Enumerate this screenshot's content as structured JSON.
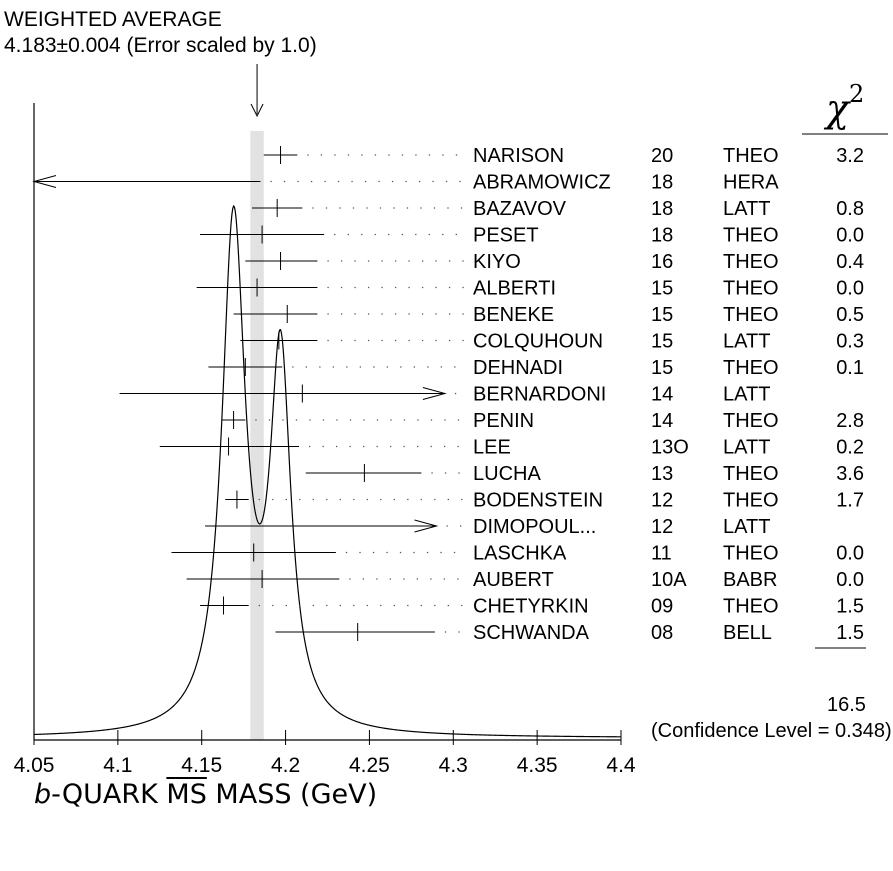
{
  "header": {
    "title": "WEIGHTED AVERAGE",
    "average_line": "4.183±0.004 (Error scaled by 1.0)"
  },
  "chi_label": "χ",
  "chi_power": "2",
  "chi2_total": "16.5",
  "confidence_text": "(Confidence Level = 0.348)",
  "x_title": {
    "prefix": "b",
    "middle": "-QUARK ",
    "ms": "MS",
    "suffix": " MASS (GeV)"
  },
  "chart_data": {
    "type": "ideogram",
    "title": "WEIGHTED AVERAGE",
    "weighted_average": 4.183,
    "weighted_error": 0.004,
    "band": [
      4.179,
      4.187
    ],
    "xlim": [
      4.05,
      4.4
    ],
    "xticks": [
      "4.05",
      "4.1",
      "4.15",
      "4.2",
      "4.25",
      "4.3",
      "4.35",
      "4.4"
    ],
    "xlabel": "b-QUARK MS MASS (GeV)",
    "curve_peaks": [
      {
        "x": 4.169,
        "height": 1.0
      },
      {
        "x": 4.197,
        "height": 0.72
      },
      {
        "x": 4.183,
        "dip": 0.35
      }
    ],
    "measurements": [
      {
        "name": "NARISON",
        "year": "20",
        "tech": "THEO",
        "chi2": "3.2",
        "value": 4.197,
        "lo": 4.187,
        "hi": 4.207
      },
      {
        "name": "ABRAMOWICZ",
        "year": "18",
        "tech": "HERA",
        "chi2": "",
        "value": null,
        "lo": 4.05,
        "hi": 4.185,
        "arrow": "left"
      },
      {
        "name": "BAZAVOV",
        "year": "18",
        "tech": "LATT",
        "chi2": "0.8",
        "value": 4.195,
        "lo": 4.18,
        "hi": 4.21
      },
      {
        "name": "PESET",
        "year": "18",
        "tech": "THEO",
        "chi2": "0.0",
        "value": 4.186,
        "lo": 4.149,
        "hi": 4.223
      },
      {
        "name": "KIYO",
        "year": "16",
        "tech": "THEO",
        "chi2": "0.4",
        "value": 4.197,
        "lo": 4.176,
        "hi": 4.219
      },
      {
        "name": "ALBERTI",
        "year": "15",
        "tech": "THEO",
        "chi2": "0.0",
        "value": 4.183,
        "lo": 4.147,
        "hi": 4.219
      },
      {
        "name": "BENEKE",
        "year": "15",
        "tech": "THEO",
        "chi2": "0.5",
        "value": 4.201,
        "lo": 4.169,
        "hi": 4.219
      },
      {
        "name": "COLQUHOUN",
        "year": "15",
        "tech": "LATT",
        "chi2": "0.3",
        "value": 4.196,
        "lo": 4.173,
        "hi": 4.219
      },
      {
        "name": "DEHNADI",
        "year": "15",
        "tech": "THEO",
        "chi2": "0.1",
        "value": 4.176,
        "lo": 4.154,
        "hi": 4.198
      },
      {
        "name": "BERNARDONI",
        "year": "14",
        "tech": "LATT",
        "chi2": "",
        "value": 4.21,
        "lo": 4.101,
        "hi": 4.295,
        "arrow": "right"
      },
      {
        "name": "PENIN",
        "year": "14",
        "tech": "THEO",
        "chi2": "2.8",
        "value": 4.169,
        "lo": 4.162,
        "hi": 4.176
      },
      {
        "name": "LEE",
        "year": "13O",
        "tech": "LATT",
        "chi2": "0.2",
        "value": 4.166,
        "lo": 4.125,
        "hi": 4.208
      },
      {
        "name": "LUCHA",
        "year": "13",
        "tech": "THEO",
        "chi2": "3.6",
        "value": 4.247,
        "lo": 4.212,
        "hi": 4.281
      },
      {
        "name": "BODENSTEIN",
        "year": "12",
        "tech": "THEO",
        "chi2": "1.7",
        "value": 4.171,
        "lo": 4.164,
        "hi": 4.178
      },
      {
        "name": "DIMOPOUL...",
        "year": "12",
        "tech": "LATT",
        "chi2": "",
        "value": null,
        "lo": 4.152,
        "hi": 4.29,
        "arrow": "right"
      },
      {
        "name": "LASCHKA",
        "year": "11",
        "tech": "THEO",
        "chi2": "0.0",
        "value": 4.181,
        "lo": 4.132,
        "hi": 4.23
      },
      {
        "name": "AUBERT",
        "year": "10A",
        "tech": "BABR",
        "chi2": "0.0",
        "value": 4.186,
        "lo": 4.141,
        "hi": 4.232
      },
      {
        "name": "CHETYRKIN",
        "year": "09",
        "tech": "THEO",
        "chi2": "1.5",
        "value": 4.163,
        "lo": 4.149,
        "hi": 4.178
      },
      {
        "name": "SCHWANDA",
        "year": "08",
        "tech": "BELL",
        "chi2": "1.5",
        "value": 4.243,
        "lo": 4.194,
        "hi": 4.289
      }
    ]
  }
}
